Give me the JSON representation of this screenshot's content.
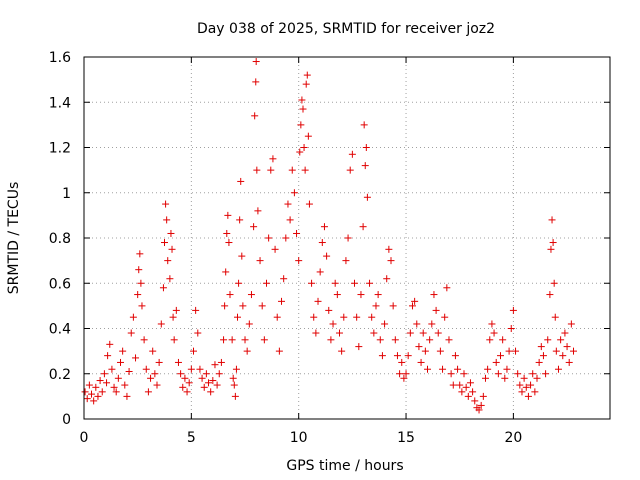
{
  "chart_data": {
    "type": "scatter",
    "title": "Day 038 of 2025, SRMTID for receiver joz2",
    "xlabel": "GPS time / hours",
    "ylabel": "SRMTID / TECUs",
    "xlim": [
      0,
      24.5
    ],
    "ylim": [
      0,
      1.6
    ],
    "xticks": [
      0,
      5,
      10,
      15,
      20
    ],
    "xtick_labels": [
      "0",
      "5",
      "10",
      "15",
      "20"
    ],
    "yticks": [
      0,
      0.2,
      0.4,
      0.6,
      0.8,
      1.0,
      1.2,
      1.4,
      1.6
    ],
    "ytick_labels": [
      "0",
      "0.2",
      "0.4",
      "0.6",
      "0.8",
      "1",
      "1.2",
      "1.4",
      "1.6"
    ],
    "grid": true,
    "marker": "+",
    "color": "#e00000",
    "series": [
      {
        "name": "SRMTID",
        "points": [
          [
            0.05,
            0.12
          ],
          [
            0.15,
            0.09
          ],
          [
            0.25,
            0.15
          ],
          [
            0.35,
            0.11
          ],
          [
            0.45,
            0.08
          ],
          [
            0.55,
            0.14
          ],
          [
            0.65,
            0.1
          ],
          [
            0.75,
            0.17
          ],
          [
            0.85,
            0.12
          ],
          [
            0.95,
            0.2
          ],
          [
            1.05,
            0.16
          ],
          [
            1.1,
            0.28
          ],
          [
            1.2,
            0.33
          ],
          [
            1.3,
            0.22
          ],
          [
            1.4,
            0.14
          ],
          [
            1.5,
            0.12
          ],
          [
            1.6,
            0.18
          ],
          [
            1.7,
            0.25
          ],
          [
            1.8,
            0.3
          ],
          [
            1.9,
            0.15
          ],
          [
            2.0,
            0.1
          ],
          [
            2.1,
            0.21
          ],
          [
            2.2,
            0.38
          ],
          [
            2.3,
            0.45
          ],
          [
            2.4,
            0.27
          ],
          [
            2.5,
            0.55
          ],
          [
            2.55,
            0.66
          ],
          [
            2.6,
            0.73
          ],
          [
            2.65,
            0.6
          ],
          [
            2.7,
            0.5
          ],
          [
            2.8,
            0.35
          ],
          [
            2.9,
            0.22
          ],
          [
            3.0,
            0.12
          ],
          [
            3.1,
            0.18
          ],
          [
            3.2,
            0.3
          ],
          [
            3.3,
            0.2
          ],
          [
            3.4,
            0.15
          ],
          [
            3.5,
            0.25
          ],
          [
            3.6,
            0.42
          ],
          [
            3.7,
            0.58
          ],
          [
            3.75,
            0.78
          ],
          [
            3.8,
            0.95
          ],
          [
            3.85,
            0.88
          ],
          [
            3.9,
            0.7
          ],
          [
            4.0,
            0.62
          ],
          [
            4.05,
            0.82
          ],
          [
            4.1,
            0.75
          ],
          [
            4.15,
            0.45
          ],
          [
            4.2,
            0.35
          ],
          [
            4.3,
            0.48
          ],
          [
            4.4,
            0.25
          ],
          [
            4.5,
            0.2
          ],
          [
            4.6,
            0.14
          ],
          [
            4.7,
            0.18
          ],
          [
            4.8,
            0.12
          ],
          [
            4.9,
            0.16
          ],
          [
            5.0,
            0.22
          ],
          [
            5.1,
            0.3
          ],
          [
            5.2,
            0.48
          ],
          [
            5.3,
            0.38
          ],
          [
            5.4,
            0.22
          ],
          [
            5.5,
            0.18
          ],
          [
            5.6,
            0.14
          ],
          [
            5.7,
            0.2
          ],
          [
            5.8,
            0.16
          ],
          [
            5.9,
            0.12
          ],
          [
            6.0,
            0.17
          ],
          [
            6.1,
            0.24
          ],
          [
            6.2,
            0.15
          ],
          [
            6.3,
            0.2
          ],
          [
            6.4,
            0.25
          ],
          [
            6.5,
            0.35
          ],
          [
            6.55,
            0.5
          ],
          [
            6.6,
            0.65
          ],
          [
            6.65,
            0.82
          ],
          [
            6.7,
            0.9
          ],
          [
            6.75,
            0.78
          ],
          [
            6.8,
            0.55
          ],
          [
            6.9,
            0.35
          ],
          [
            6.95,
            0.18
          ],
          [
            7.0,
            0.15
          ],
          [
            7.05,
            0.1
          ],
          [
            7.1,
            0.22
          ],
          [
            7.15,
            0.45
          ],
          [
            7.2,
            0.6
          ],
          [
            7.25,
            0.88
          ],
          [
            7.3,
            1.05
          ],
          [
            7.35,
            0.72
          ],
          [
            7.4,
            0.5
          ],
          [
            7.5,
            0.35
          ],
          [
            7.6,
            0.3
          ],
          [
            7.7,
            0.42
          ],
          [
            7.8,
            0.55
          ],
          [
            7.9,
            0.85
          ],
          [
            7.95,
            1.34
          ],
          [
            8.0,
            1.49
          ],
          [
            8.02,
            1.58
          ],
          [
            8.05,
            1.1
          ],
          [
            8.1,
            0.92
          ],
          [
            8.2,
            0.7
          ],
          [
            8.3,
            0.5
          ],
          [
            8.4,
            0.35
          ],
          [
            8.5,
            0.6
          ],
          [
            8.6,
            0.8
          ],
          [
            8.7,
            1.1
          ],
          [
            8.8,
            1.15
          ],
          [
            8.9,
            0.75
          ],
          [
            9.0,
            0.45
          ],
          [
            9.1,
            0.3
          ],
          [
            9.2,
            0.52
          ],
          [
            9.3,
            0.62
          ],
          [
            9.4,
            0.8
          ],
          [
            9.5,
            0.95
          ],
          [
            9.6,
            0.88
          ],
          [
            9.7,
            1.1
          ],
          [
            9.8,
            1.0
          ],
          [
            9.9,
            0.82
          ],
          [
            10.0,
            0.7
          ],
          [
            10.05,
            1.18
          ],
          [
            10.1,
            1.3
          ],
          [
            10.15,
            1.41
          ],
          [
            10.2,
            1.37
          ],
          [
            10.25,
            1.2
          ],
          [
            10.3,
            1.1
          ],
          [
            10.35,
            1.48
          ],
          [
            10.4,
            1.52
          ],
          [
            10.45,
            1.25
          ],
          [
            10.5,
            0.95
          ],
          [
            10.6,
            0.6
          ],
          [
            10.7,
            0.45
          ],
          [
            10.8,
            0.38
          ],
          [
            10.9,
            0.52
          ],
          [
            11.0,
            0.65
          ],
          [
            11.1,
            0.78
          ],
          [
            11.2,
            0.85
          ],
          [
            11.3,
            0.72
          ],
          [
            11.4,
            0.48
          ],
          [
            11.5,
            0.35
          ],
          [
            11.6,
            0.42
          ],
          [
            11.7,
            0.6
          ],
          [
            11.8,
            0.55
          ],
          [
            11.9,
            0.38
          ],
          [
            12.0,
            0.3
          ],
          [
            12.1,
            0.45
          ],
          [
            12.2,
            0.7
          ],
          [
            12.3,
            0.8
          ],
          [
            12.4,
            1.1
          ],
          [
            12.5,
            1.17
          ],
          [
            12.6,
            0.6
          ],
          [
            12.7,
            0.45
          ],
          [
            12.8,
            0.32
          ],
          [
            12.9,
            0.55
          ],
          [
            13.0,
            0.85
          ],
          [
            13.05,
            1.3
          ],
          [
            13.1,
            1.12
          ],
          [
            13.15,
            1.2
          ],
          [
            13.2,
            0.98
          ],
          [
            13.3,
            0.6
          ],
          [
            13.4,
            0.45
          ],
          [
            13.5,
            0.38
          ],
          [
            13.6,
            0.5
          ],
          [
            13.7,
            0.55
          ],
          [
            13.8,
            0.35
          ],
          [
            13.9,
            0.28
          ],
          [
            14.0,
            0.42
          ],
          [
            14.1,
            0.62
          ],
          [
            14.2,
            0.75
          ],
          [
            14.3,
            0.7
          ],
          [
            14.4,
            0.5
          ],
          [
            14.5,
            0.35
          ],
          [
            14.6,
            0.28
          ],
          [
            14.7,
            0.2
          ],
          [
            14.8,
            0.25
          ],
          [
            14.9,
            0.18
          ],
          [
            15.0,
            0.2
          ],
          [
            15.1,
            0.28
          ],
          [
            15.2,
            0.38
          ],
          [
            15.3,
            0.5
          ],
          [
            15.4,
            0.52
          ],
          [
            15.5,
            0.42
          ],
          [
            15.6,
            0.32
          ],
          [
            15.7,
            0.25
          ],
          [
            15.8,
            0.38
          ],
          [
            15.9,
            0.3
          ],
          [
            16.0,
            0.22
          ],
          [
            16.1,
            0.35
          ],
          [
            16.2,
            0.42
          ],
          [
            16.3,
            0.55
          ],
          [
            16.4,
            0.48
          ],
          [
            16.5,
            0.38
          ],
          [
            16.6,
            0.3
          ],
          [
            16.7,
            0.22
          ],
          [
            16.8,
            0.45
          ],
          [
            16.9,
            0.58
          ],
          [
            17.0,
            0.35
          ],
          [
            17.1,
            0.2
          ],
          [
            17.2,
            0.15
          ],
          [
            17.3,
            0.28
          ],
          [
            17.4,
            0.22
          ],
          [
            17.5,
            0.15
          ],
          [
            17.6,
            0.12
          ],
          [
            17.7,
            0.2
          ],
          [
            17.8,
            0.14
          ],
          [
            17.9,
            0.1
          ],
          [
            18.0,
            0.16
          ],
          [
            18.1,
            0.12
          ],
          [
            18.2,
            0.08
          ],
          [
            18.3,
            0.05
          ],
          [
            18.4,
            0.04
          ],
          [
            18.5,
            0.06
          ],
          [
            18.6,
            0.1
          ],
          [
            18.7,
            0.18
          ],
          [
            18.8,
            0.22
          ],
          [
            18.9,
            0.35
          ],
          [
            19.0,
            0.42
          ],
          [
            19.1,
            0.38
          ],
          [
            19.2,
            0.25
          ],
          [
            19.3,
            0.2
          ],
          [
            19.4,
            0.28
          ],
          [
            19.5,
            0.35
          ],
          [
            19.6,
            0.18
          ],
          [
            19.7,
            0.22
          ],
          [
            19.8,
            0.3
          ],
          [
            19.9,
            0.4
          ],
          [
            20.0,
            0.48
          ],
          [
            20.1,
            0.3
          ],
          [
            20.2,
            0.2
          ],
          [
            20.3,
            0.15
          ],
          [
            20.4,
            0.12
          ],
          [
            20.5,
            0.18
          ],
          [
            20.6,
            0.14
          ],
          [
            20.7,
            0.1
          ],
          [
            20.8,
            0.15
          ],
          [
            20.9,
            0.2
          ],
          [
            21.0,
            0.12
          ],
          [
            21.1,
            0.18
          ],
          [
            21.2,
            0.25
          ],
          [
            21.3,
            0.32
          ],
          [
            21.4,
            0.28
          ],
          [
            21.5,
            0.2
          ],
          [
            21.6,
            0.35
          ],
          [
            21.7,
            0.55
          ],
          [
            21.75,
            0.75
          ],
          [
            21.8,
            0.88
          ],
          [
            21.85,
            0.78
          ],
          [
            21.9,
            0.6
          ],
          [
            21.95,
            0.45
          ],
          [
            22.0,
            0.3
          ],
          [
            22.1,
            0.22
          ],
          [
            22.2,
            0.35
          ],
          [
            22.3,
            0.28
          ],
          [
            22.4,
            0.38
          ],
          [
            22.5,
            0.32
          ],
          [
            22.6,
            0.25
          ],
          [
            22.7,
            0.42
          ],
          [
            22.8,
            0.3
          ]
        ]
      }
    ]
  }
}
